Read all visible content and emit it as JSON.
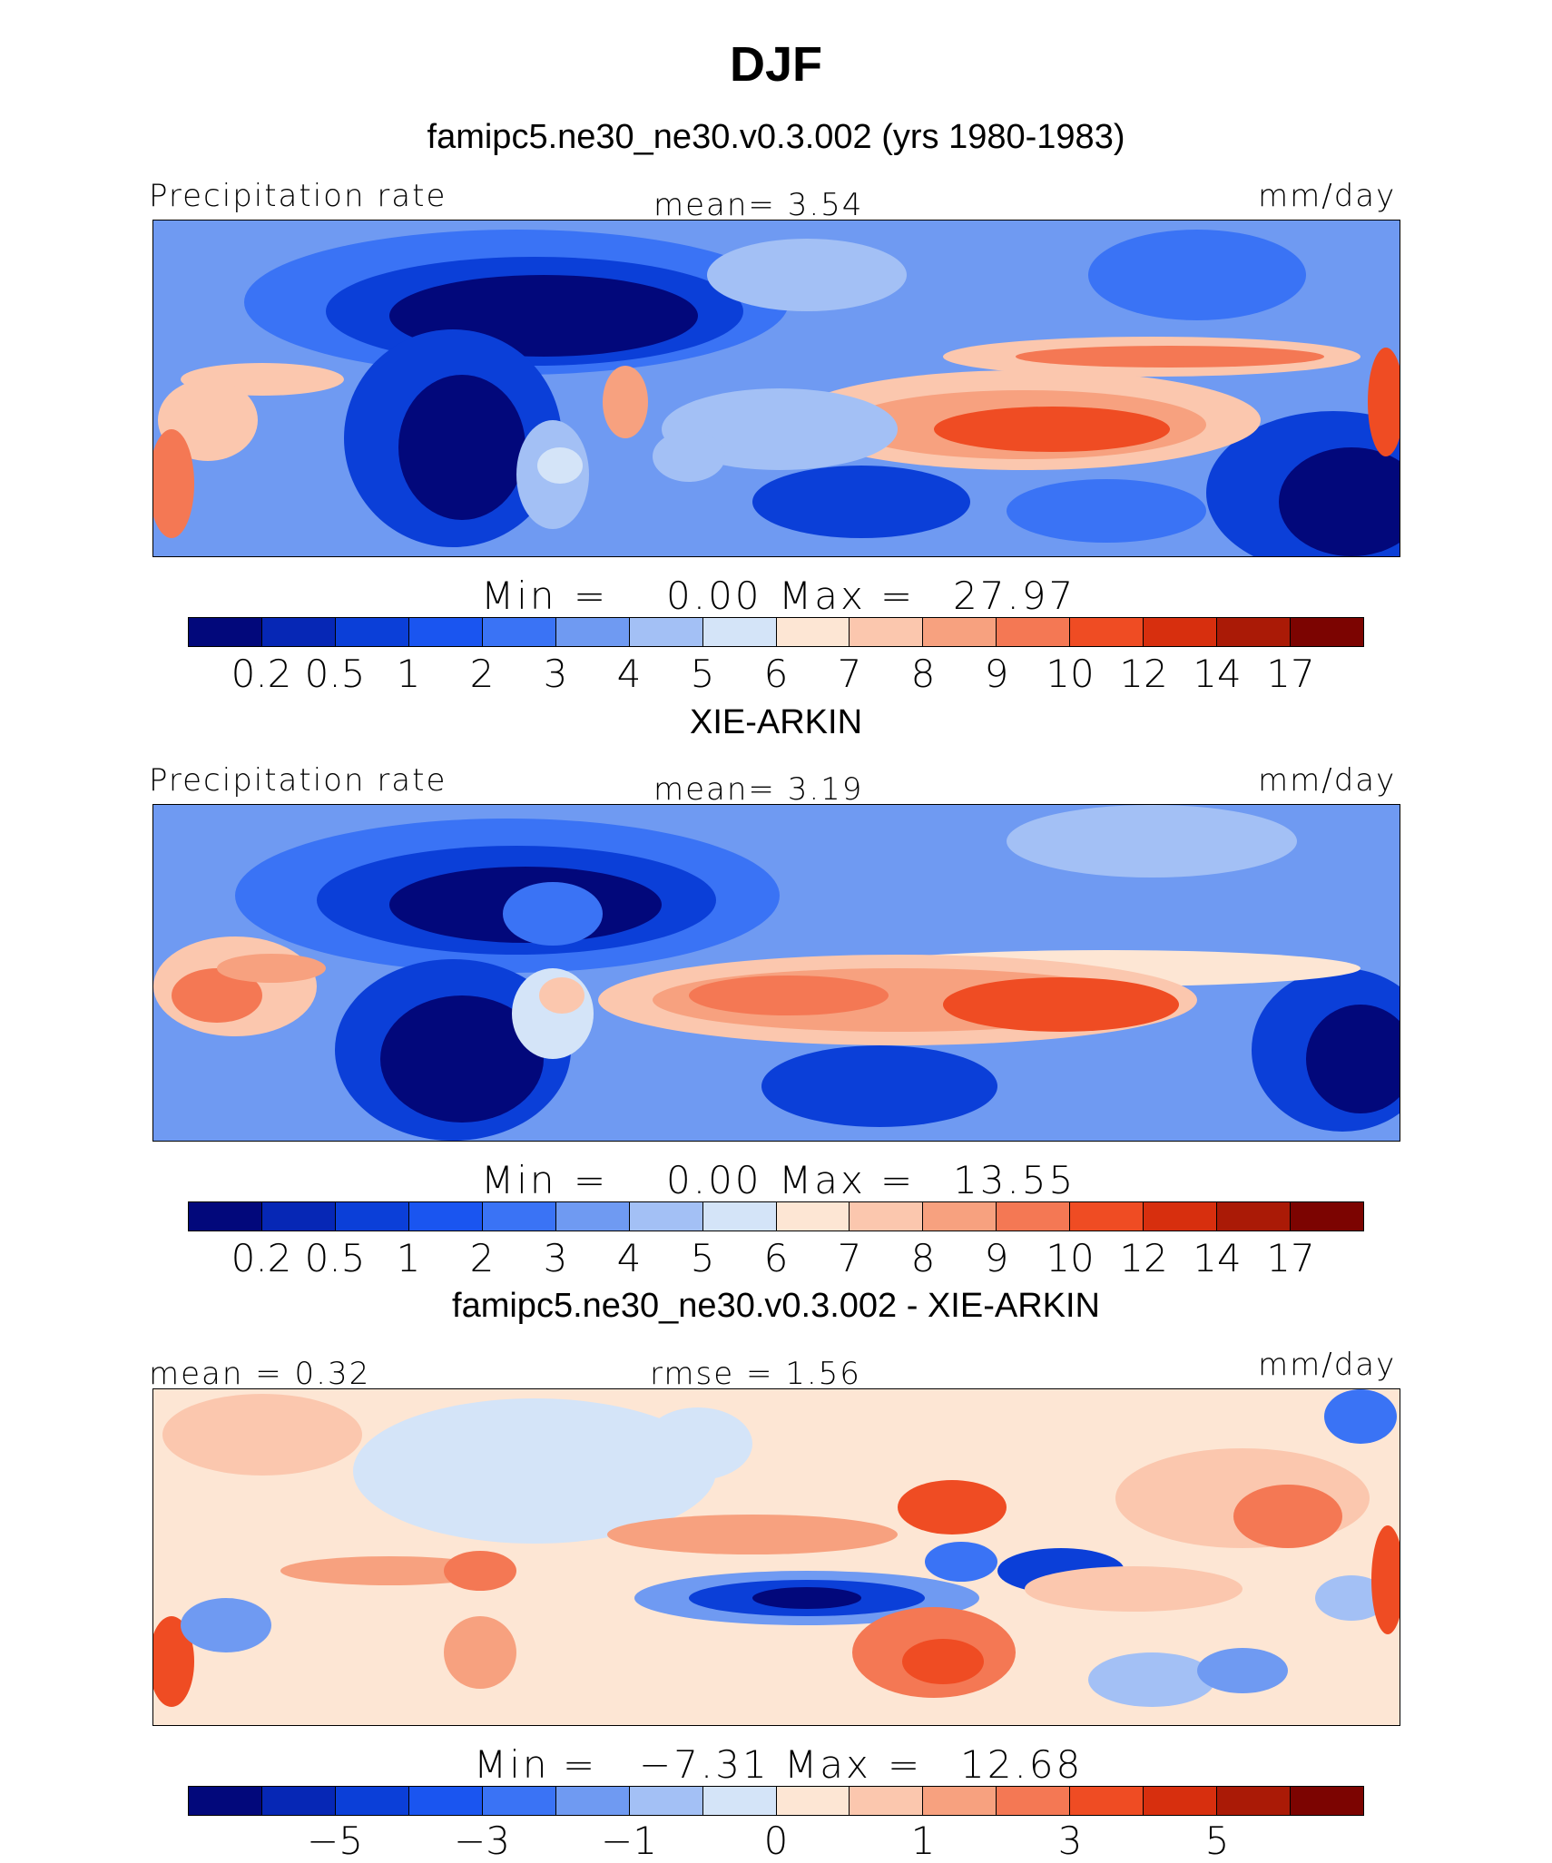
{
  "title": "DJF",
  "colors": {
    "seq": [
      "#02087b",
      "#0627b5",
      "#0b3fd8",
      "#1a55f0",
      "#3a73f5",
      "#6f9af2",
      "#a3c0f5",
      "#d4e4f8",
      "#fde6d4",
      "#fbc7ae",
      "#f7a17f",
      "#f47854",
      "#ef4c23",
      "#d72f0e",
      "#aa1a06",
      "#7c0401"
    ],
    "diff": [
      "#02087b",
      "#0627b5",
      "#0b3fd8",
      "#1a55f0",
      "#3a73f5",
      "#6f9af2",
      "#a3c0f5",
      "#d4e4f8",
      "#fde6d4",
      "#fbc7ae",
      "#f7a17f",
      "#f47854",
      "#ef4c23",
      "#d72f0e",
      "#aa1a06",
      "#7c0401"
    ]
  },
  "panels": [
    {
      "header": "famipc5.ne30_ne30.v0.3.002 (yrs 1980-1983)",
      "left_label": "Precipitation rate",
      "center_label": "mean=    3.54",
      "right_label": "mm/day",
      "min_label": "Min",
      "min_value": "0.00",
      "max_label": "Max",
      "max_value": "27.97",
      "tick_labels": [
        "0.2",
        "0.5",
        "1",
        "2",
        "3",
        "4",
        "5",
        "6",
        "7",
        "8",
        "9",
        "10",
        "12",
        "14",
        "17"
      ]
    },
    {
      "header": "XIE-ARKIN",
      "left_label": "Precipitation rate",
      "center_label": "mean=    3.19",
      "right_label": "mm/day",
      "min_label": "Min",
      "min_value": "0.00",
      "max_label": "Max",
      "max_value": "13.55",
      "tick_labels": [
        "0.2",
        "0.5",
        "1",
        "2",
        "3",
        "4",
        "5",
        "6",
        "7",
        "8",
        "9",
        "10",
        "12",
        "14",
        "17"
      ]
    },
    {
      "header": "famipc5.ne30_ne30.v0.3.002 - XIE-ARKIN",
      "left_label": "mean =    0.32",
      "center_label": "rmse =    1.56",
      "right_label": "mm/day",
      "min_label": "Min",
      "min_value": "−7.31",
      "max_label": "Max",
      "max_value": "12.68",
      "tick_labels": [
        "−5",
        "−3",
        "−1",
        "0",
        "1",
        "3",
        "5"
      ]
    }
  ]
}
